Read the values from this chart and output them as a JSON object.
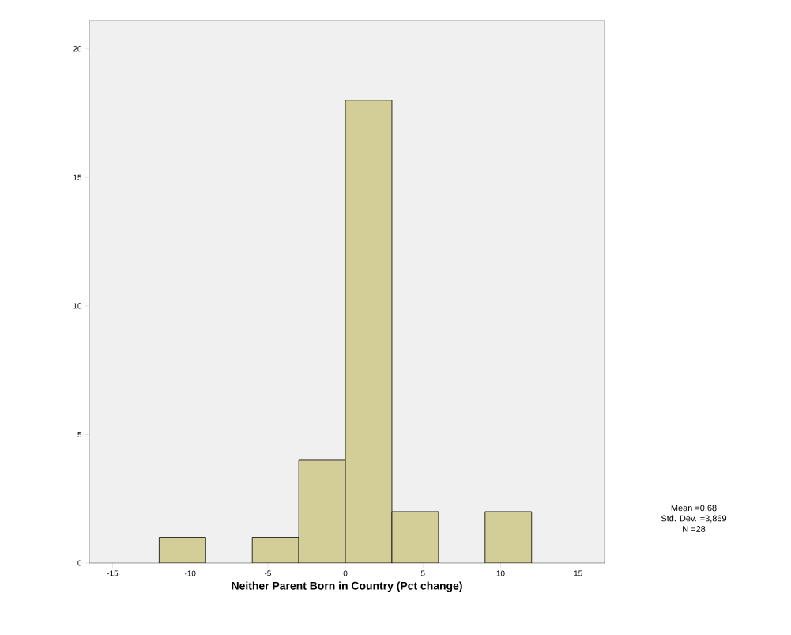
{
  "chart_data": {
    "type": "histogram",
    "xlabel": "Neither Parent Born in Country (Pct change)",
    "bins": [
      -12,
      -9,
      -6,
      -3,
      0,
      3,
      6,
      9,
      12
    ],
    "values": [
      1,
      0,
      1,
      4,
      18,
      2,
      0,
      2
    ],
    "color": "#d3ce97",
    "xlim": [
      -16.5,
      16.7
    ],
    "xticks": [
      -15,
      -10,
      -5,
      0,
      5,
      10,
      15
    ],
    "ylim": [
      0,
      21.1
    ],
    "yticks": [
      0,
      5,
      10,
      15,
      20
    ],
    "annotations": [
      "Mean =0,68",
      "Std. Dev. =3,869",
      "N =28"
    ]
  }
}
